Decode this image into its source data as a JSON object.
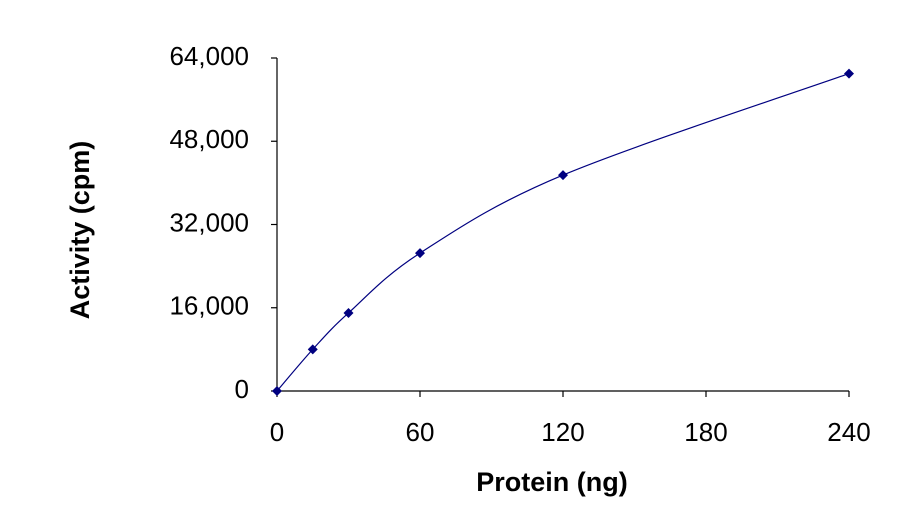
{
  "chart_data": {
    "type": "line",
    "x_label": "Protein (ng)",
    "y_label": "Activity (cpm)",
    "x": [
      0,
      15,
      30,
      60,
      120,
      240
    ],
    "series": [
      {
        "color": "#000080",
        "values": [
          0,
          8000,
          15000,
          26500,
          41500,
          61000
        ]
      }
    ],
    "xlim": [
      0,
      240
    ],
    "xticks": [
      0,
      60,
      120,
      180,
      240
    ],
    "ylim": [
      0,
      64000
    ],
    "yticks": [
      0,
      {
        "value": 16000,
        "label": "16,000"
      },
      {
        "value": 32000,
        "label": "32,000"
      },
      {
        "value": 48000,
        "label": "48,000"
      },
      {
        "value": 64000,
        "label": "64,000"
      }
    ],
    "grid": false,
    "smooth": true,
    "marker": "diamond"
  }
}
